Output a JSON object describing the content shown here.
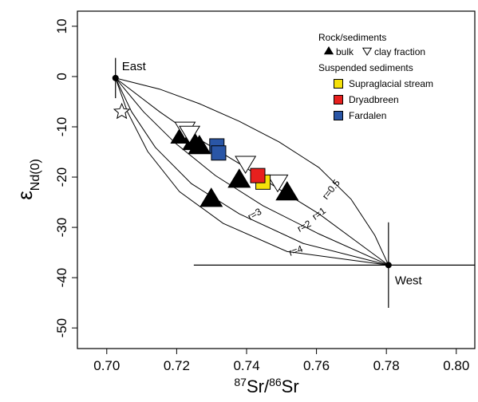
{
  "chart_data": {
    "type": "scatter",
    "x_label": {
      "sup1": "87",
      "t1": "Sr/",
      "sup2": "86",
      "t2": "Sr"
    },
    "y_label": {
      "main": "ε",
      "sub": "Nd(0)"
    },
    "xlim": [
      0.6916,
      0.8053
    ],
    "ylim": [
      -54.1,
      13
    ],
    "xticks": [
      {
        "value": 0.7,
        "label": "0.70"
      },
      {
        "value": 0.72,
        "label": "0.72"
      },
      {
        "value": 0.74,
        "label": "0.74"
      },
      {
        "value": 0.76,
        "label": "0.76"
      },
      {
        "value": 0.78,
        "label": "0.78"
      },
      {
        "value": 0.8,
        "label": "0.80"
      }
    ],
    "yticks": [
      10,
      0,
      -10,
      -20,
      -30,
      -40,
      -50
    ],
    "legend_titles": [
      "Rock/sediments",
      "Suspended sediments"
    ],
    "series": [
      {
        "name": "bulk",
        "marker": "triangle",
        "color": "#000000",
        "x": [
          0.7215,
          0.7249,
          0.7265,
          0.7379,
          0.7516,
          0.7299
        ],
        "values": [
          -11.7,
          -13.0,
          -13.8,
          -20.5,
          -23.0,
          -24.3
        ]
      },
      {
        "name": "clay fraction",
        "marker": "triangle-down",
        "color": "#ffffff",
        "x": [
          0.7224,
          0.7237,
          0.7397,
          0.7489
        ],
        "values": [
          -10.5,
          -11.3,
          -17.3,
          -21.0
        ]
      },
      {
        "marker": "star",
        "color": "#ffffff",
        "x": [
          0.7043
        ],
        "values": [
          -7.0
        ]
      },
      {
        "name": "Supraglacial stream",
        "marker": "square",
        "color": "#f5e10a",
        "x": [
          0.7447
        ],
        "values": [
          -21.0
        ]
      },
      {
        "name": "Dryadbreen",
        "marker": "square",
        "color": "#e8201e",
        "x": [
          0.7432
        ],
        "values": [
          -19.7
        ]
      },
      {
        "name": "Fardalen",
        "marker": "square",
        "color": "#2a56a6",
        "x": [
          0.7315,
          0.732
        ],
        "values": [
          -13.8,
          -15.2
        ]
      }
    ],
    "endmembers": [
      {
        "label": "East",
        "x": 0.7025,
        "y": -0.3,
        "yerr": 4
      },
      {
        "label": "West",
        "x": 0.7806,
        "y": -37.5,
        "yerr": 8.5,
        "xerr": 0.0557
      }
    ],
    "mixing_curves": [
      {
        "label": "r=0.5",
        "x": [
          0.7025,
          0.7151,
          0.7265,
          0.7379,
          0.7493,
          0.7607,
          0.7699,
          0.7767,
          0.7806
        ],
        "y": [
          -0.3,
          -2.5,
          -5.4,
          -8.9,
          -13.0,
          -18.1,
          -24.4,
          -31.6,
          -37.5
        ]
      },
      {
        "label": "r=1",
        "x": [
          0.7025,
          0.7151,
          0.7265,
          0.7379,
          0.7493,
          0.7607,
          0.7722,
          0.7806
        ],
        "y": [
          -0.3,
          -7.0,
          -12.5,
          -17.3,
          -22.4,
          -27.3,
          -33.2,
          -37.5
        ]
      },
      {
        "label": "r=2",
        "x": [
          0.7025,
          0.7105,
          0.7197,
          0.7311,
          0.7447,
          0.7607,
          0.7806
        ],
        "y": [
          -0.3,
          -7.0,
          -13.3,
          -19.7,
          -25.7,
          -31.3,
          -37.5
        ]
      },
      {
        "label": "r=3",
        "x": [
          0.7025,
          0.7071,
          0.7139,
          0.7242,
          0.7379,
          0.7562,
          0.7806
        ],
        "y": [
          -0.3,
          -7.0,
          -14.1,
          -21.3,
          -27.3,
          -33.2,
          -37.5
        ]
      },
      {
        "label": "r=4",
        "x": [
          0.7025,
          0.7059,
          0.7117,
          0.7208,
          0.7333,
          0.7516,
          0.7806
        ],
        "y": [
          -0.3,
          -7.0,
          -14.9,
          -22.9,
          -29.2,
          -34.8,
          -37.5
        ]
      }
    ]
  }
}
